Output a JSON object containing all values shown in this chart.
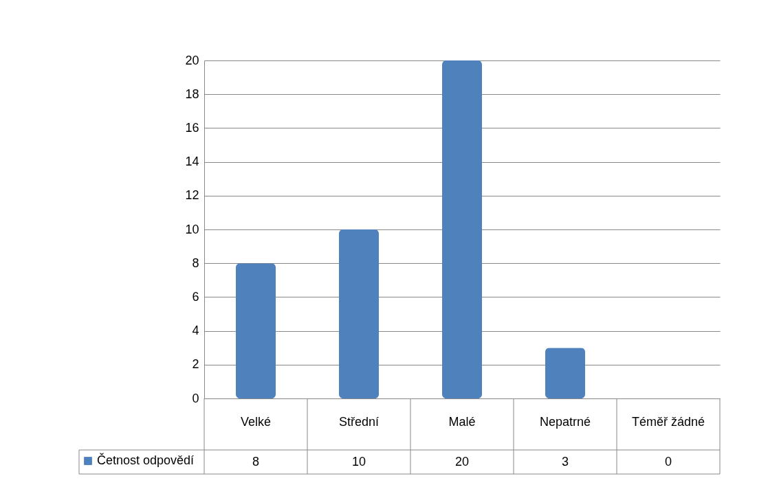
{
  "chart_data": {
    "type": "bar",
    "categories": [
      "Velké",
      "Střední",
      "Malé",
      "Nepatrné",
      "Téměř žádné"
    ],
    "series": [
      {
        "name": "Četnost odpovědí",
        "color": "#4f81bd",
        "values": [
          8,
          10,
          20,
          3,
          0
        ]
      }
    ],
    "ylim": [
      0,
      20
    ],
    "yticks": [
      0,
      2,
      4,
      6,
      8,
      10,
      12,
      14,
      16,
      18,
      20
    ],
    "grid": "y",
    "legend": "bottom",
    "data_labels": true
  }
}
